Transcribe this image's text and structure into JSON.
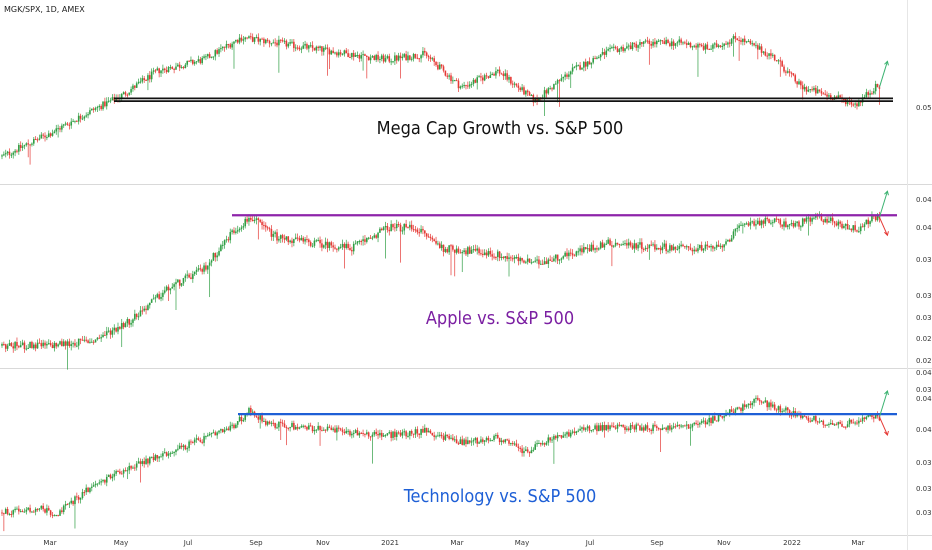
{
  "header": {
    "symbol_text": "MGK/SPX, 1D, AMEX"
  },
  "colors": {
    "up": "#2e9e43",
    "down": "#e53935",
    "grid": "#e6e6e6",
    "divider": "#d9d9d9"
  },
  "x_axis": {
    "labels": [
      "Mar",
      "May",
      "Jul",
      "Sep",
      "Nov",
      "2021",
      "Mar",
      "May",
      "Jul",
      "Sep",
      "Nov",
      "2022",
      "Mar"
    ]
  },
  "chart_data": [
    {
      "type": "candlestick",
      "title": "Mega Cap Growth vs. S&P 500",
      "title_color": "#111111",
      "y_tick_labels": [
        "0.05"
      ],
      "line_color": "#111111",
      "waypoints": [
        [
          0,
          0.035
        ],
        [
          0.05,
          0.043
        ],
        [
          0.1,
          0.052
        ],
        [
          0.13,
          0.057
        ],
        [
          0.17,
          0.066
        ],
        [
          0.22,
          0.07
        ],
        [
          0.26,
          0.078
        ],
        [
          0.3,
          0.076
        ],
        [
          0.34,
          0.074
        ],
        [
          0.38,
          0.072
        ],
        [
          0.42,
          0.07
        ],
        [
          0.46,
          0.072
        ],
        [
          0.5,
          0.06
        ],
        [
          0.54,
          0.066
        ],
        [
          0.58,
          0.055
        ],
        [
          0.62,
          0.066
        ],
        [
          0.66,
          0.073
        ],
        [
          0.7,
          0.076
        ],
        [
          0.74,
          0.076
        ],
        [
          0.77,
          0.074
        ],
        [
          0.8,
          0.078
        ],
        [
          0.84,
          0.071
        ],
        [
          0.87,
          0.06
        ],
        [
          0.9,
          0.057
        ],
        [
          0.93,
          0.054
        ],
        [
          0.95,
          0.06
        ]
      ],
      "support_levels": [
        0.056,
        0.055
      ],
      "projections": [
        {
          "direction": "up",
          "color": "#3cb371"
        }
      ]
    },
    {
      "type": "candlestick",
      "title": "Apple vs. S&P 500",
      "title_color": "#7b1fa2",
      "y_tick_labels": [
        "0.04",
        "0.04",
        "0.03",
        "0.03",
        "0.03",
        "0.02",
        "0.02"
      ],
      "line_color": "#8e24aa",
      "waypoints": [
        [
          0,
          0.0245
        ],
        [
          0.05,
          0.0245
        ],
        [
          0.1,
          0.025
        ],
        [
          0.14,
          0.027
        ],
        [
          0.18,
          0.03
        ],
        [
          0.22,
          0.032
        ],
        [
          0.25,
          0.0355
        ],
        [
          0.27,
          0.037
        ],
        [
          0.3,
          0.035
        ],
        [
          0.34,
          0.0345
        ],
        [
          0.38,
          0.034
        ],
        [
          0.42,
          0.036
        ],
        [
          0.45,
          0.036
        ],
        [
          0.48,
          0.034
        ],
        [
          0.53,
          0.0335
        ],
        [
          0.58,
          0.0325
        ],
        [
          0.62,
          0.0335
        ],
        [
          0.66,
          0.0345
        ],
        [
          0.7,
          0.0342
        ],
        [
          0.74,
          0.034
        ],
        [
          0.78,
          0.034
        ],
        [
          0.81,
          0.0365
        ],
        [
          0.84,
          0.0366
        ],
        [
          0.86,
          0.0362
        ],
        [
          0.89,
          0.037
        ],
        [
          0.93,
          0.0358
        ],
        [
          0.95,
          0.037
        ]
      ],
      "resistance_level": 0.0372,
      "projections": [
        {
          "direction": "up",
          "color": "#3cb371"
        },
        {
          "direction": "down",
          "color": "#e53935"
        }
      ]
    },
    {
      "type": "candlestick",
      "title": "Technology vs. S&P 500",
      "title_color": "#1e5fd6",
      "y_tick_labels": [
        "0.04",
        "0.04",
        "0.03",
        "0.03",
        "0.03",
        "0.03"
      ],
      "line_color": "#1e5fd6",
      "waypoints": [
        [
          0,
          0.0285
        ],
        [
          0.04,
          0.0288
        ],
        [
          0.06,
          0.0284
        ],
        [
          0.09,
          0.03
        ],
        [
          0.13,
          0.0315
        ],
        [
          0.17,
          0.0325
        ],
        [
          0.21,
          0.0335
        ],
        [
          0.25,
          0.0345
        ],
        [
          0.27,
          0.0358
        ],
        [
          0.29,
          0.0348
        ],
        [
          0.34,
          0.0345
        ],
        [
          0.38,
          0.0342
        ],
        [
          0.42,
          0.034
        ],
        [
          0.46,
          0.0343
        ],
        [
          0.5,
          0.0335
        ],
        [
          0.54,
          0.0338
        ],
        [
          0.57,
          0.0328
        ],
        [
          0.6,
          0.0338
        ],
        [
          0.64,
          0.0345
        ],
        [
          0.68,
          0.0346
        ],
        [
          0.72,
          0.0345
        ],
        [
          0.76,
          0.0348
        ],
        [
          0.8,
          0.0358
        ],
        [
          0.82,
          0.0365
        ],
        [
          0.85,
          0.0358
        ],
        [
          0.88,
          0.0352
        ],
        [
          0.91,
          0.0347
        ],
        [
          0.95,
          0.0353
        ]
      ],
      "resistance_level": 0.0355,
      "projections": [
        {
          "direction": "up",
          "color": "#3cb371"
        },
        {
          "direction": "down",
          "color": "#e53935"
        }
      ]
    }
  ]
}
